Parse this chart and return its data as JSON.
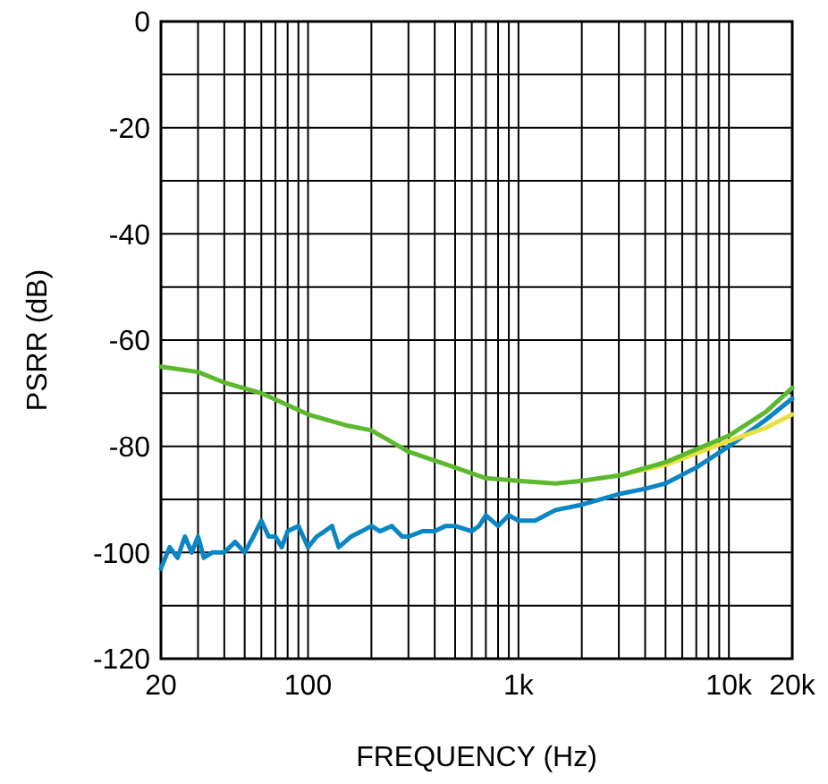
{
  "chart_data": {
    "type": "line",
    "xlabel": "FREQUENCY (Hz)",
    "ylabel": "PSRR (dB)",
    "log": "x",
    "grid": true,
    "marker": "none",
    "line_style": "solid",
    "xlim": [
      20,
      20000
    ],
    "ylim": [
      -120,
      0
    ],
    "xticks": [
      20,
      {
        "value": 30,
        "label": null
      },
      {
        "value": 40,
        "label": null
      },
      {
        "value": 50,
        "label": null
      },
      {
        "value": 60,
        "label": null
      },
      {
        "value": 70,
        "label": null
      },
      {
        "value": 80,
        "label": null
      },
      {
        "value": 90,
        "label": null
      },
      100,
      {
        "value": 200,
        "label": null
      },
      {
        "value": 300,
        "label": null
      },
      {
        "value": 400,
        "label": null
      },
      {
        "value": 500,
        "label": null
      },
      {
        "value": 600,
        "label": null
      },
      {
        "value": 700,
        "label": null
      },
      {
        "value": 800,
        "label": null
      },
      {
        "value": 900,
        "label": null
      },
      {
        "value": 1000,
        "label": "1k"
      },
      {
        "value": 2000,
        "label": null
      },
      {
        "value": 3000,
        "label": null
      },
      {
        "value": 4000,
        "label": null
      },
      {
        "value": 5000,
        "label": null
      },
      {
        "value": 6000,
        "label": null
      },
      {
        "value": 7000,
        "label": null
      },
      {
        "value": 8000,
        "label": null
      },
      {
        "value": 9000,
        "label": null
      },
      {
        "value": 10000,
        "label": "10k"
      },
      {
        "value": 20000,
        "label": "20k"
      }
    ],
    "yticks": [
      -120,
      {
        "value": -110,
        "label": null
      },
      -100,
      {
        "value": -90,
        "label": null
      },
      -80,
      {
        "value": -70,
        "label": null
      },
      -60,
      {
        "value": -50,
        "label": null
      },
      -40,
      {
        "value": -30,
        "label": null
      },
      -20,
      {
        "value": -10,
        "label": null
      },
      0
    ],
    "series": [
      {
        "color": "#0a86c4",
        "x": [
          20,
          22,
          24,
          26,
          28,
          30,
          32,
          35,
          40,
          45,
          50,
          55,
          60,
          65,
          70,
          75,
          80,
          90,
          100,
          110,
          120,
          130,
          140,
          160,
          180,
          200,
          220,
          250,
          280,
          300,
          350,
          400,
          450,
          500,
          600,
          650,
          700,
          800,
          900,
          1000,
          1200,
          1500,
          2000,
          3000,
          4000,
          5000,
          7000,
          10000,
          15000,
          20000
        ],
        "values": [
          -103,
          -99,
          -101,
          -97,
          -100,
          -97,
          -101,
          -100,
          -100,
          -98,
          -100,
          -97,
          -94,
          -97,
          -97,
          -99,
          -96,
          -95,
          -99,
          -97,
          -96,
          -95,
          -99,
          -97,
          -96,
          -95,
          -96,
          -95,
          -97,
          -97,
          -96,
          -96,
          -95,
          -95,
          -96,
          -95,
          -93,
          -95,
          -93,
          -94,
          -94,
          -92,
          -91,
          -89,
          -88,
          -87,
          -84,
          -80,
          -75,
          -71
        ]
      },
      {
        "color": "#e8e040",
        "x": [
          3000,
          5000,
          10000,
          15000,
          20000
        ],
        "values": [
          -85.5,
          -83.5,
          -79,
          -76.5,
          -74
        ]
      },
      {
        "color": "#5cb82e",
        "x": [
          20,
          30,
          40,
          60,
          100,
          150,
          200,
          300,
          500,
          700,
          1000,
          1500,
          2000,
          3000,
          5000,
          10000,
          15000,
          20000
        ],
        "values": [
          -65,
          -66,
          -68,
          -70,
          -74,
          -76,
          -77,
          -81,
          -84,
          -86,
          -86.5,
          -87,
          -86.5,
          -85.5,
          -83,
          -78,
          -73.5,
          -69
        ]
      }
    ]
  }
}
